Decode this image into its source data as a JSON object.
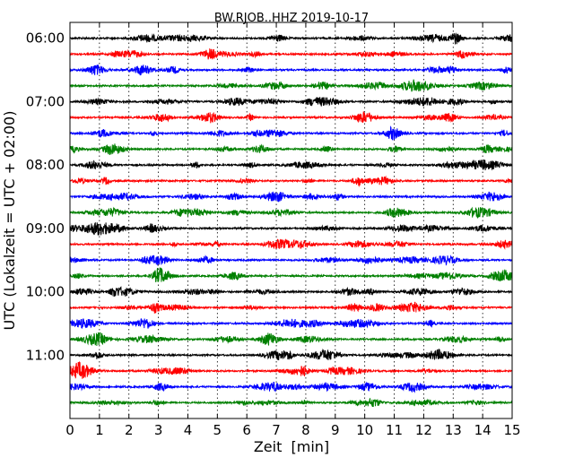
{
  "chart_data": {
    "type": "line",
    "title": "BW.RJOB..HHZ 2019-10-17",
    "xlabel": "Zeit  [min]",
    "ylabel": "UTC (Lokalzeit = UTC + 02:00)",
    "xlim": [
      0,
      15
    ],
    "x_ticks": [
      "0",
      "1",
      "2",
      "3",
      "4",
      "5",
      "6",
      "7",
      "8",
      "9",
      "10",
      "11",
      "12",
      "13",
      "14",
      "15"
    ],
    "ylim": [
      "05:45",
      "12:00"
    ],
    "y_ticks": [
      "06:00",
      "07:00",
      "08:00",
      "09:00",
      "10:00",
      "11:00"
    ],
    "grid": "vertical dotted at each minute",
    "trace_interval_minutes": 15,
    "trace_colors": [
      "#000000",
      "#ff0000",
      "#0000ff",
      "#008000"
    ],
    "traces": [
      {
        "start": "06:00",
        "color": "#000000"
      },
      {
        "start": "06:15",
        "color": "#ff0000"
      },
      {
        "start": "06:30",
        "color": "#0000ff"
      },
      {
        "start": "06:45",
        "color": "#008000"
      },
      {
        "start": "07:00",
        "color": "#000000"
      },
      {
        "start": "07:15",
        "color": "#ff0000"
      },
      {
        "start": "07:30",
        "color": "#0000ff"
      },
      {
        "start": "07:45",
        "color": "#008000"
      },
      {
        "start": "08:00",
        "color": "#000000"
      },
      {
        "start": "08:15",
        "color": "#ff0000"
      },
      {
        "start": "08:30",
        "color": "#0000ff"
      },
      {
        "start": "08:45",
        "color": "#008000"
      },
      {
        "start": "09:00",
        "color": "#000000"
      },
      {
        "start": "09:15",
        "color": "#ff0000"
      },
      {
        "start": "09:30",
        "color": "#0000ff"
      },
      {
        "start": "09:45",
        "color": "#008000"
      },
      {
        "start": "10:00",
        "color": "#000000"
      },
      {
        "start": "10:15",
        "color": "#ff0000"
      },
      {
        "start": "10:30",
        "color": "#0000ff"
      },
      {
        "start": "10:45",
        "color": "#008000"
      },
      {
        "start": "11:00",
        "color": "#000000"
      },
      {
        "start": "11:15",
        "color": "#ff0000"
      },
      {
        "start": "11:30",
        "color": "#0000ff"
      },
      {
        "start": "11:45",
        "color": "#008000"
      }
    ]
  }
}
